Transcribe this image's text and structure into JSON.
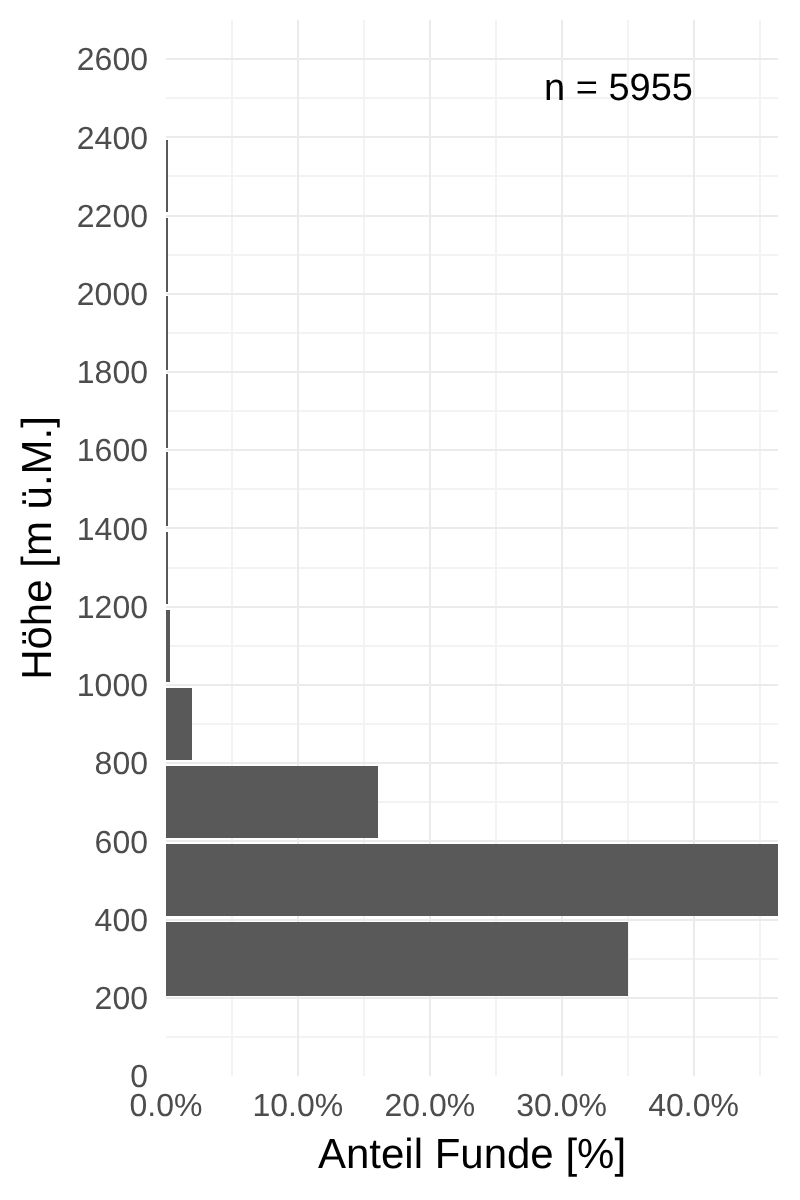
{
  "chart_data": {
    "type": "histogram",
    "orientation": "horizontal",
    "bins": [
      200,
      400,
      600,
      800,
      1000,
      1200,
      1400,
      1600,
      1800,
      2000,
      2200,
      2400
    ],
    "values": [
      35.1,
      46.4,
      16.0,
      1.9,
      0.2,
      0.1,
      0.1,
      0.1,
      0.1,
      0.1,
      0.1
    ],
    "color": "#595959",
    "xlabel": "Anteil Funde [%]",
    "ylabel": "Höhe [m ü.M.]",
    "xlim": [
      0,
      46.4
    ],
    "xticks": [
      {
        "value": 0,
        "label": "0.0%"
      },
      {
        "value": 10,
        "label": "10.0%"
      },
      {
        "value": 20,
        "label": "20.0%"
      },
      {
        "value": 30,
        "label": "30.0%"
      },
      {
        "value": 40,
        "label": "40.0%"
      }
    ],
    "ylim": [
      0,
      2700
    ],
    "yticks": [
      0,
      200,
      400,
      600,
      800,
      1000,
      1200,
      1400,
      1600,
      1800,
      2000,
      2200,
      2400,
      2600
    ],
    "grid": true,
    "annotations": [
      "n = 5955"
    ]
  }
}
